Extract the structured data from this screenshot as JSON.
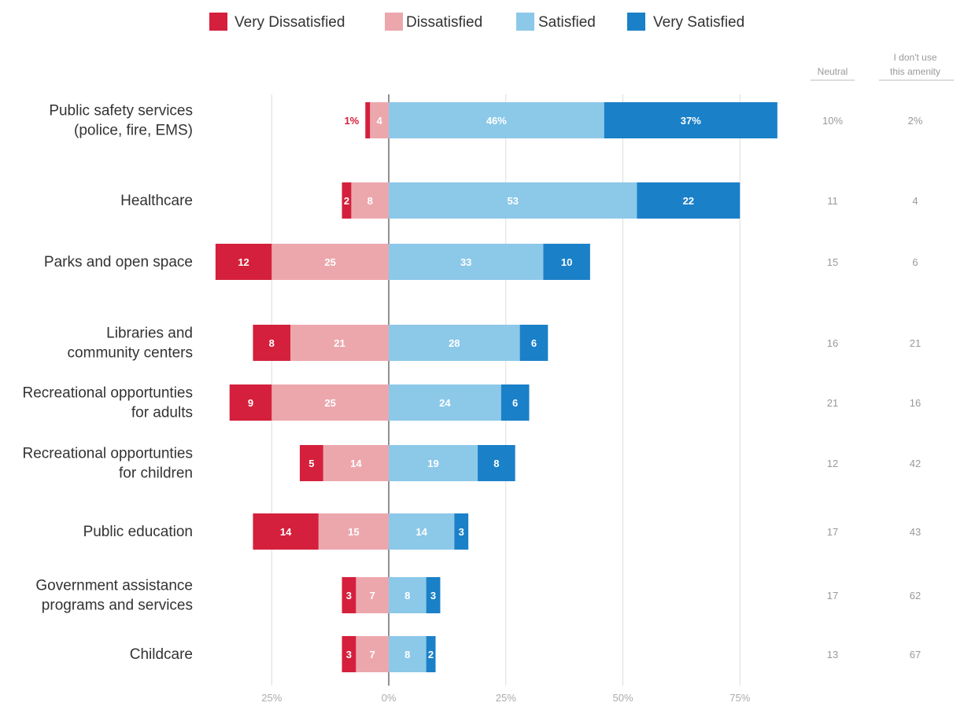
{
  "legend": [
    {
      "name": "Very Dissatisfied",
      "color": "#d4203c"
    },
    {
      "name": "Dissatisfied",
      "color": "#eca7ad"
    },
    {
      "name": "Satisfied",
      "color": "#8cc8e8"
    },
    {
      "name": "Very Satisfied",
      "color": "#1a80c8"
    }
  ],
  "side_headers": {
    "neutral": "Neutral",
    "no_use_line1": "I don't use",
    "no_use_line2": "this amenity"
  },
  "chart_data": {
    "type": "bar",
    "orientation": "horizontal-diverging",
    "categories": [
      [
        "Public safety services",
        "(police, fire, EMS)"
      ],
      [
        "Healthcare"
      ],
      [
        "Parks and open space"
      ],
      [
        "Libraries and",
        "community centers"
      ],
      [
        "Recreational opportunties",
        "for adults"
      ],
      [
        "Recreational opportunties",
        "for children"
      ],
      [
        "Public education"
      ],
      [
        "Government assistance",
        "programs and services"
      ],
      [
        "Childcare"
      ]
    ],
    "series": [
      {
        "name": "Very Dissatisfied",
        "values": [
          1,
          2,
          12,
          8,
          9,
          5,
          14,
          3,
          3
        ],
        "labels": [
          "1%",
          "2",
          "12",
          "8",
          "9",
          "5",
          "14",
          "3",
          "3"
        ]
      },
      {
        "name": "Dissatisfied",
        "values": [
          4,
          8,
          25,
          21,
          25,
          14,
          15,
          7,
          7
        ],
        "labels": [
          "4",
          "8",
          "25",
          "21",
          "25",
          "14",
          "15",
          "7",
          "7"
        ]
      },
      {
        "name": "Satisfied",
        "values": [
          46,
          53,
          33,
          28,
          24,
          19,
          14,
          8,
          8
        ],
        "labels": [
          "46%",
          "53",
          "33",
          "28",
          "24",
          "19",
          "14",
          "8",
          "8"
        ]
      },
      {
        "name": "Very Satisfied",
        "values": [
          37,
          22,
          10,
          6,
          6,
          8,
          3,
          3,
          2
        ],
        "labels": [
          "37%",
          "22",
          "10",
          "6",
          "6",
          "8",
          "3",
          "3",
          "2"
        ]
      }
    ],
    "neutral": [
      "10%",
      "11",
      "15",
      "16",
      "21",
      "12",
      "17",
      "17",
      "13"
    ],
    "no_use": [
      "2%",
      "4",
      "6",
      "21",
      "16",
      "42",
      "43",
      "62",
      "67"
    ],
    "xticks": [
      {
        "value": -25,
        "label": "25%"
      },
      {
        "value": 0,
        "label": "0%"
      },
      {
        "value": 25,
        "label": "25%"
      },
      {
        "value": 50,
        "label": "50%"
      },
      {
        "value": 75,
        "label": "75%"
      }
    ],
    "xlim": [
      -25,
      75
    ],
    "grid": true
  }
}
